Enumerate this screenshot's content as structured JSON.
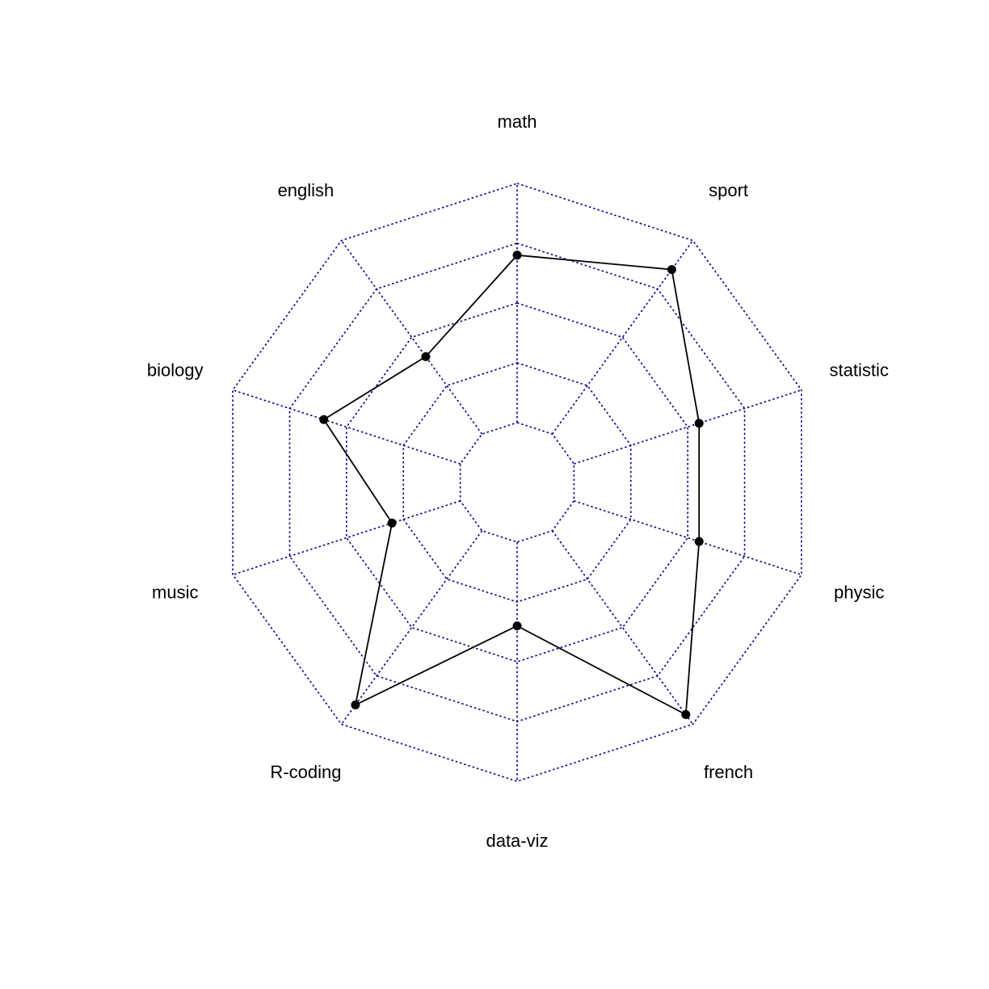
{
  "chart_data": {
    "type": "radar",
    "categories": [
      "math",
      "sport",
      "statistic",
      "physic",
      "french",
      "data-viz",
      "R-coding",
      "music",
      "biology",
      "english"
    ],
    "series": [
      {
        "values": [
          14,
          17,
          11,
          11,
          19,
          7,
          18,
          6,
          12,
          8
        ]
      }
    ],
    "range": [
      0,
      20
    ],
    "grid_levels": 5,
    "grid": true,
    "colors": {
      "grid": "#00008b",
      "line": "#000000",
      "points": "#000000"
    }
  }
}
